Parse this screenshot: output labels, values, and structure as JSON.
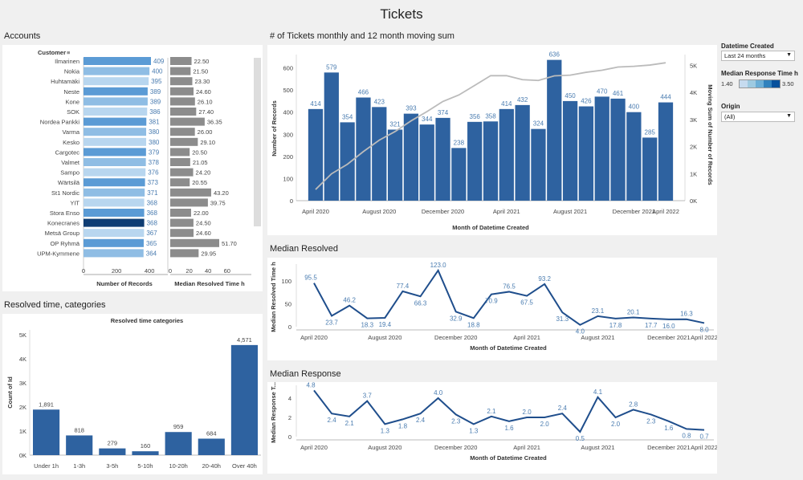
{
  "page_title": "Tickets",
  "accounts": {
    "title": "Accounts",
    "customer_header": "Customer",
    "xaxis1_label": "Number of Records",
    "xaxis2_label": "Median Resolved Time h",
    "xticks1": [
      "0",
      "200",
      "400"
    ],
    "xticks2": [
      "0",
      "20",
      "40",
      "60"
    ],
    "rows": [
      {
        "name": "Ilmarinen",
        "records": 409,
        "resolved": "22.50",
        "rv": 22.5
      },
      {
        "name": "Nokia",
        "records": 400,
        "resolved": "21.50",
        "rv": 21.5
      },
      {
        "name": "Huhtamäki",
        "records": 395,
        "resolved": "23.30",
        "rv": 23.3
      },
      {
        "name": "Neste",
        "records": 389,
        "resolved": "24.60",
        "rv": 24.6
      },
      {
        "name": "Kone",
        "records": 389,
        "resolved": "26.10",
        "rv": 26.1
      },
      {
        "name": "SOK",
        "records": 386,
        "resolved": "27.40",
        "rv": 27.4
      },
      {
        "name": "Nordea Pankki",
        "records": 381,
        "resolved": "36.35",
        "rv": 36.35
      },
      {
        "name": "Varma",
        "records": 380,
        "resolved": "26.00",
        "rv": 26.0
      },
      {
        "name": "Kesko",
        "records": 380,
        "resolved": "29.10",
        "rv": 29.1
      },
      {
        "name": "Cargotec",
        "records": 379,
        "resolved": "20.50",
        "rv": 20.5
      },
      {
        "name": "Valmet",
        "records": 378,
        "resolved": "21.05",
        "rv": 21.05
      },
      {
        "name": "Sampo",
        "records": 376,
        "resolved": "24.20",
        "rv": 24.2
      },
      {
        "name": "Wärtsilä",
        "records": 373,
        "resolved": "20.55",
        "rv": 20.55
      },
      {
        "name": "St1 Nordic",
        "records": 371,
        "resolved": "43.20",
        "rv": 43.2
      },
      {
        "name": "YIT",
        "records": 368,
        "resolved": "39.75",
        "rv": 39.75
      },
      {
        "name": "Stora Enso",
        "records": 368,
        "resolved": "22.00",
        "rv": 22.0
      },
      {
        "name": "Konecranes",
        "records": 368,
        "resolved": "24.50",
        "rv": 24.5
      },
      {
        "name": "Metsä Group",
        "records": 367,
        "resolved": "24.60",
        "rv": 24.6
      },
      {
        "name": "OP Ryhmä",
        "records": 365,
        "resolved": "51.70",
        "rv": 51.7
      },
      {
        "name": "UPM-Kymmene",
        "records": 364,
        "resolved": "29.95",
        "rv": 29.95
      }
    ],
    "highlight_color": "#0f3d73"
  },
  "resolved_categories": {
    "title": "Resolved time, categories",
    "chart_title": "Resolved time categories"
  },
  "tickets_chart": {
    "title": "# of Tickets monthly and 12 month moving sum"
  },
  "median_resolved": {
    "title": "Median Resolved"
  },
  "median_response": {
    "title": "Median Response"
  },
  "filters": {
    "datetime_label": "Datetime Created",
    "datetime_value": "Last 24 months",
    "legend_label": "Median Response Time h",
    "legend_min": "1.40",
    "legend_max": "3.50",
    "origin_label": "Origin",
    "origin_value": "(All)"
  },
  "chart_data": [
    {
      "type": "bar",
      "title": "# of Tickets monthly and 12 month moving sum",
      "xlabel": "Month of Datetime Created",
      "ylabel": "Number of Records",
      "y2label": "Moving Sum of Number of Records",
      "xticks": [
        "April 2020",
        "August 2020",
        "December 2020",
        "April 2021",
        "August 2021",
        "December 2021",
        "April 2022"
      ],
      "yticks": [
        "0",
        "100",
        "200",
        "300",
        "400",
        "500",
        "600"
      ],
      "y2ticks": [
        "0K",
        "1K",
        "2K",
        "3K",
        "4K",
        "5K"
      ],
      "ylim": [
        0,
        660
      ],
      "y2lim": [
        0,
        5400
      ],
      "values": [
        414,
        579,
        354,
        466,
        423,
        321,
        393,
        344,
        374,
        238,
        356,
        358,
        414,
        432,
        324,
        636,
        450,
        426,
        470,
        461,
        400,
        285,
        444
      ],
      "moving_sum": [
        414,
        993,
        1347,
        1813,
        2236,
        2557,
        2950,
        3294,
        3668,
        3906,
        4262,
        4620,
        4620,
        4473,
        4443,
        4613,
        4640,
        4745,
        4822,
        4939,
        4965,
        5012,
        5098
      ],
      "bar_color": "#2e62a0",
      "line_color": "#bbbbbb"
    },
    {
      "type": "line",
      "title": "Median Resolved",
      "xlabel": "Month of Datetime Created",
      "ylabel": "Median Resolved Time h",
      "xticks": [
        "April 2020",
        "August 2020",
        "December 2020",
        "April 2021",
        "August 2021",
        "December 2021",
        "April 2022"
      ],
      "yticks": [
        "0",
        "50",
        "100"
      ],
      "ylim": [
        0,
        130
      ],
      "values": [
        95.5,
        23.7,
        46.2,
        18.3,
        19.4,
        77.4,
        66.3,
        123.0,
        32.9,
        18.8,
        70.9,
        76.5,
        67.5,
        93.2,
        31.3,
        4.0,
        23.1,
        17.8,
        20.1,
        17.7,
        16.0,
        16.3,
        8.0
      ],
      "labels": [
        "95.5",
        "23.7",
        "46.2",
        "18.3",
        "19.4",
        "77.4",
        "66.3",
        "123.0",
        "32.9",
        "18.8",
        "70.9",
        "76.5",
        "67.5",
        "93.2",
        "31.3",
        "4.0",
        "23.1",
        "17.8",
        "20.1",
        "17.7",
        "16.0",
        "16.3",
        "8.0"
      ],
      "line_color": "#1f4e8c"
    },
    {
      "type": "line",
      "title": "Median Response",
      "xlabel": "Month of Datetime Created",
      "ylabel": "Median Response T...",
      "xticks": [
        "April 2020",
        "August 2020",
        "December 2020",
        "April 2021",
        "August 2021",
        "December 2021",
        "April 2022"
      ],
      "yticks": [
        "0",
        "2",
        "4"
      ],
      "ylim": [
        0,
        5
      ],
      "values": [
        4.8,
        2.4,
        2.1,
        3.7,
        1.3,
        1.8,
        2.4,
        4.0,
        2.3,
        1.3,
        2.1,
        1.6,
        2.0,
        2.0,
        2.4,
        0.5,
        4.1,
        2.0,
        2.8,
        2.3,
        1.6,
        0.8,
        0.7
      ],
      "labels": [
        "4.8",
        "2.4",
        "2.1",
        "3.7",
        "1.3",
        "1.8",
        "2.4",
        "4.0",
        "2.3",
        "1.3",
        "2.1",
        "1.6",
        "2.0",
        "2.0",
        "2.4",
        "0.5",
        "4.1",
        "2.0",
        "2.8",
        "2.3",
        "1.6",
        "0.8",
        "0.7"
      ],
      "line_color": "#1f4e8c"
    },
    {
      "type": "bar",
      "title": "Resolved time categories",
      "ylabel": "Count of Id",
      "categories": [
        "Under 1h",
        "1-3h",
        "3-5h",
        "5-10h",
        "10-20h",
        "20-40h",
        "Over 40h"
      ],
      "values": [
        1891,
        818,
        279,
        160,
        959,
        684,
        4571
      ],
      "labels": [
        "1,891",
        "818",
        "279",
        "160",
        "959",
        "684",
        "4,571"
      ],
      "yticks": [
        "0K",
        "1K",
        "2K",
        "3K",
        "4K",
        "5K"
      ],
      "ylim": [
        0,
        5200
      ],
      "bar_color": "#2e62a0"
    }
  ]
}
